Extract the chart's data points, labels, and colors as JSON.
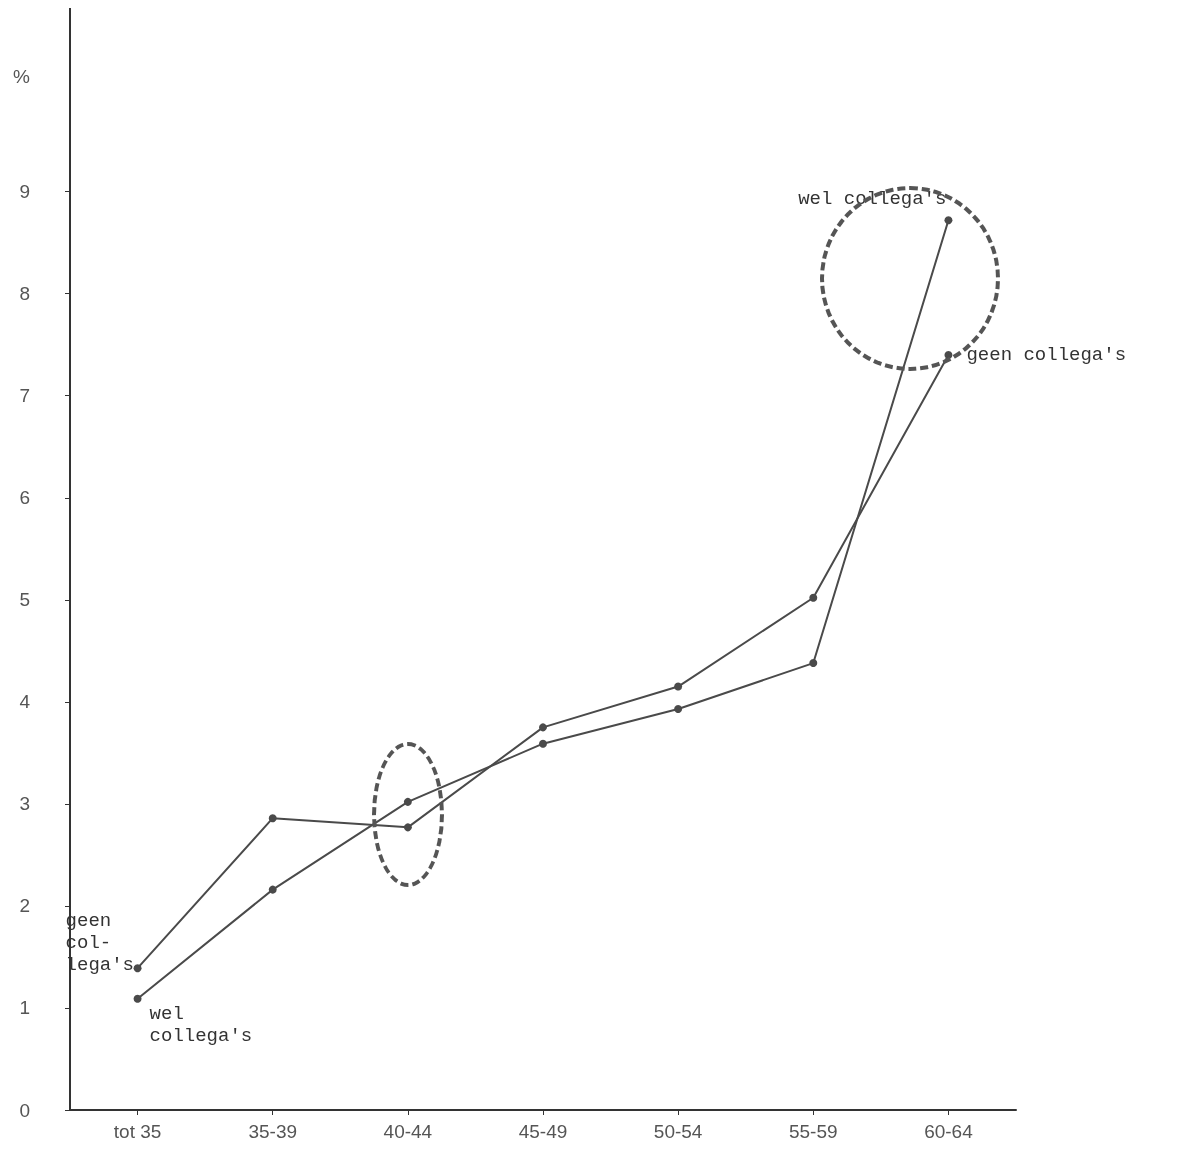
{
  "chart_data": {
    "type": "line",
    "ylabel": "%",
    "categories": [
      "tot 35",
      "35-39",
      "40-44",
      "45-49",
      "50-54",
      "55-59",
      "60-64"
    ],
    "series": [
      {
        "name": "geen collega's",
        "color": "#4a4a4a",
        "values": [
          1.39,
          2.86,
          2.77,
          3.75,
          4.15,
          5.02,
          7.4
        ]
      },
      {
        "name": "wel collega's",
        "color": "#4a4a4a",
        "values": [
          1.09,
          2.16,
          3.02,
          3.59,
          3.93,
          4.38,
          8.72
        ]
      }
    ],
    "ylim": [
      0,
      10.8
    ],
    "yticks": [
      0,
      1,
      2,
      3,
      4,
      5,
      6,
      7,
      8,
      9
    ],
    "annotations": [
      {
        "text": "geen\ncol-\nlega's",
        "x": "tot 35",
        "y": 1.39
      },
      {
        "text": "wel\ncollega's",
        "x": "tot 35",
        "y": 1.09
      }
    ],
    "grid": false,
    "legend": false,
    "marker": "circle",
    "line_style": "solid"
  }
}
